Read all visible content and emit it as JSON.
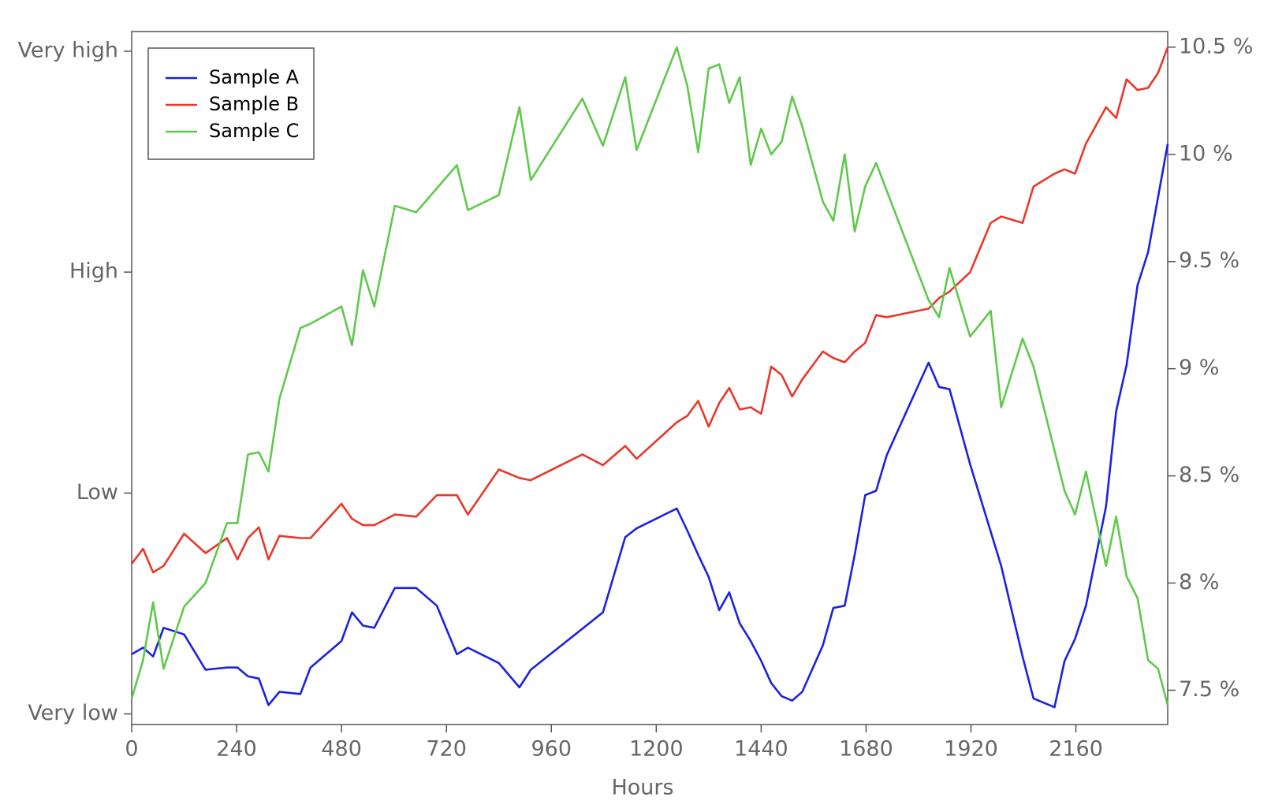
{
  "chart_data": {
    "type": "line",
    "x_label": "Hours",
    "xlim": [
      0,
      2370
    ],
    "xticks": [
      0,
      240,
      480,
      720,
      960,
      1200,
      1440,
      1680,
      1920,
      2160
    ],
    "ylim": [
      -0.048,
      3.089
    ],
    "yticks": [
      {
        "value": 0,
        "label": "Very low"
      },
      {
        "value": 1,
        "label": "Low"
      },
      {
        "value": 2,
        "label": "High"
      },
      {
        "value": 3,
        "label": "Very high"
      }
    ],
    "y2lim": [
      7.34,
      10.573
    ],
    "y2ticks": [
      {
        "value": 7.5,
        "label": "7.5 %"
      },
      {
        "value": 8,
        "label": "8 %"
      },
      {
        "value": 8.5,
        "label": "8.5 %"
      },
      {
        "value": 9,
        "label": "9 %"
      },
      {
        "value": 9.5,
        "label": "9.5 %"
      },
      {
        "value": 10,
        "label": "10 %"
      },
      {
        "value": 10.5,
        "label": "10.5 %"
      }
    ],
    "legend": "top-left",
    "series": [
      {
        "name": "Sample A",
        "color": "#1a22e0",
        "axis": "y",
        "x": [
          0,
          26,
          49,
          73,
          120,
          169,
          218,
          242,
          266,
          291,
          313,
          338,
          386,
          409,
          480,
          504,
          529,
          555,
          602,
          651,
          698,
          744,
          769,
          840,
          887,
          913,
          1078,
          1129,
          1155,
          1247,
          1271,
          1296,
          1320,
          1344,
          1367,
          1391,
          1416,
          1440,
          1463,
          1487,
          1511,
          1534,
          1581,
          1605,
          1631,
          1654,
          1678,
          1703,
          1727,
          1823,
          1847,
          1871,
          1918,
          1989,
          2038,
          2063,
          2111,
          2134,
          2158,
          2183,
          2229,
          2252,
          2276,
          2301,
          2325,
          2348,
          2370
        ],
        "values": [
          0.27,
          0.3,
          0.26,
          0.39,
          0.36,
          0.2,
          0.21,
          0.21,
          0.17,
          0.16,
          0.04,
          0.1,
          0.09,
          0.21,
          0.33,
          0.46,
          0.4,
          0.39,
          0.57,
          0.57,
          0.49,
          0.27,
          0.3,
          0.23,
          0.12,
          0.2,
          0.46,
          0.8,
          0.84,
          0.93,
          0.83,
          0.72,
          0.62,
          0.47,
          0.55,
          0.41,
          0.33,
          0.24,
          0.14,
          0.08,
          0.06,
          0.1,
          0.31,
          0.48,
          0.49,
          0.72,
          0.99,
          1.01,
          1.17,
          1.59,
          1.48,
          1.47,
          1.13,
          0.67,
          0.26,
          0.07,
          0.03,
          0.24,
          0.34,
          0.49,
          0.94,
          1.37,
          1.58,
          1.94,
          2.09,
          2.34,
          2.58
        ]
      },
      {
        "name": "Sample B",
        "color": "#e8382a",
        "axis": "y2",
        "x": [
          0,
          26,
          49,
          73,
          120,
          169,
          218,
          242,
          266,
          291,
          313,
          338,
          386,
          409,
          480,
          504,
          529,
          555,
          602,
          651,
          698,
          744,
          769,
          840,
          887,
          913,
          1031,
          1078,
          1129,
          1155,
          1247,
          1271,
          1296,
          1320,
          1344,
          1367,
          1391,
          1416,
          1440,
          1463,
          1487,
          1511,
          1534,
          1581,
          1605,
          1631,
          1654,
          1678,
          1703,
          1727,
          1823,
          1847,
          1871,
          1918,
          1965,
          1989,
          2038,
          2063,
          2111,
          2134,
          2158,
          2183,
          2229,
          2252,
          2276,
          2301,
          2325,
          2348,
          2370
        ],
        "values": [
          8.09,
          8.16,
          8.05,
          8.08,
          8.23,
          8.14,
          8.21,
          8.11,
          8.21,
          8.26,
          8.11,
          8.22,
          8.21,
          8.21,
          8.37,
          8.3,
          8.27,
          8.27,
          8.32,
          8.31,
          8.41,
          8.41,
          8.32,
          8.53,
          8.49,
          8.48,
          8.6,
          8.55,
          8.64,
          8.58,
          8.75,
          8.78,
          8.85,
          8.73,
          8.84,
          8.91,
          8.81,
          8.82,
          8.79,
          9.01,
          8.97,
          8.87,
          8.95,
          9.08,
          9.05,
          9.03,
          9.08,
          9.12,
          9.25,
          9.24,
          9.28,
          9.33,
          9.36,
          9.45,
          9.68,
          9.71,
          9.68,
          9.85,
          9.91,
          9.93,
          9.91,
          10.05,
          10.22,
          10.17,
          10.35,
          10.3,
          10.31,
          10.38,
          10.5
        ]
      },
      {
        "name": "Sample C",
        "color": "#5ec94a",
        "axis": "y2",
        "x": [
          0,
          26,
          49,
          73,
          120,
          169,
          218,
          242,
          266,
          291,
          313,
          338,
          386,
          409,
          480,
          504,
          529,
          555,
          602,
          651,
          744,
          769,
          840,
          887,
          913,
          1031,
          1078,
          1129,
          1155,
          1247,
          1271,
          1296,
          1320,
          1344,
          1367,
          1391,
          1416,
          1440,
          1463,
          1487,
          1511,
          1534,
          1581,
          1605,
          1631,
          1654,
          1678,
          1703,
          1823,
          1847,
          1871,
          1918,
          1965,
          1989,
          2038,
          2063,
          2134,
          2158,
          2183,
          2229,
          2252,
          2276,
          2301,
          2325,
          2348,
          2370
        ],
        "values": [
          7.46,
          7.64,
          7.91,
          7.6,
          7.89,
          8.0,
          8.28,
          8.28,
          8.6,
          8.61,
          8.52,
          8.86,
          9.19,
          9.21,
          9.29,
          9.11,
          9.46,
          9.29,
          9.76,
          9.73,
          9.95,
          9.74,
          9.81,
          10.22,
          9.88,
          10.26,
          10.04,
          10.36,
          10.02,
          10.5,
          10.32,
          10.01,
          10.4,
          10.42,
          10.24,
          10.36,
          9.95,
          10.12,
          10.0,
          10.06,
          10.27,
          10.13,
          9.78,
          9.69,
          10.0,
          9.64,
          9.85,
          9.96,
          9.32,
          9.24,
          9.47,
          9.15,
          9.27,
          8.82,
          9.14,
          9.01,
          8.43,
          8.32,
          8.52,
          8.08,
          8.31,
          8.03,
          7.93,
          7.64,
          7.6,
          7.43
        ]
      }
    ]
  }
}
